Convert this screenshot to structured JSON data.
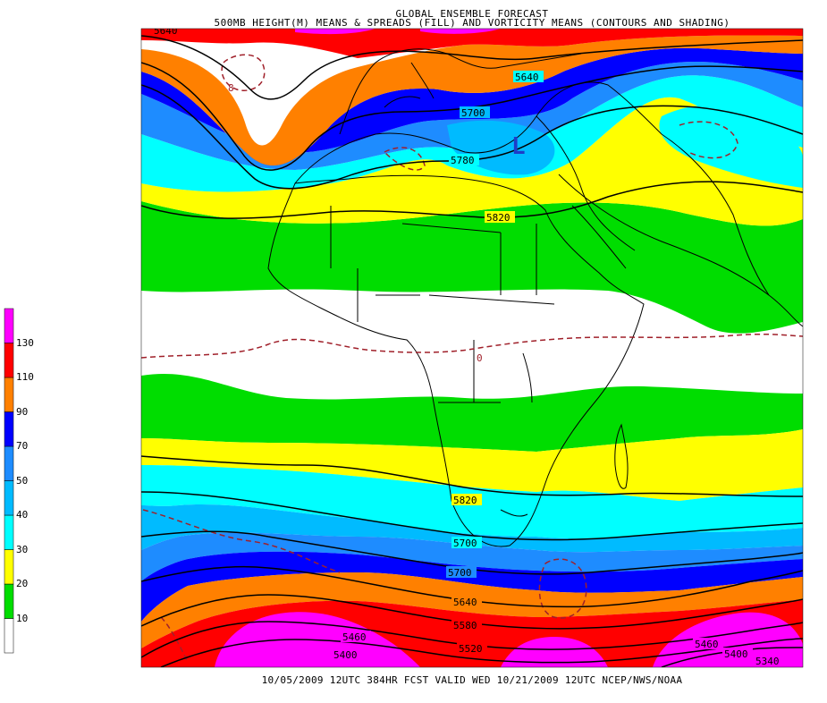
{
  "title": {
    "line1": "GLOBAL ENSEMBLE FORECAST",
    "line2": "500MB HEIGHT(M) MEANS & SPREADS (FILL) AND VORTICITY MEANS (CONTOURS AND SHADING)"
  },
  "footer": "10/05/2009 12UTC 384HR FCST VALID WED 10/21/2009 12UTC  NCEP/NWS/NOAA",
  "colorbar": {
    "levels": [
      "10",
      "20",
      "30",
      "40",
      "50",
      "70",
      "90",
      "110",
      "130"
    ],
    "colors": [
      "#ffffff",
      "#00dd00",
      "#ffff00",
      "#00ffff",
      "#00bbff",
      "#1e8cff",
      "#0000ff",
      "#ff8000",
      "#ff0000",
      "#ff00ff"
    ]
  },
  "contour_labels": {
    "north": [
      "5640",
      "5700",
      "5780",
      "5820",
      "5640"
    ],
    "south": [
      "5820",
      "5700",
      "5700",
      "5640",
      "5580",
      "5520",
      "5460",
      "5400",
      "5460",
      "5400",
      "5340"
    ],
    "vorticity": [
      "8",
      "0"
    ]
  },
  "low_marker": "L"
}
